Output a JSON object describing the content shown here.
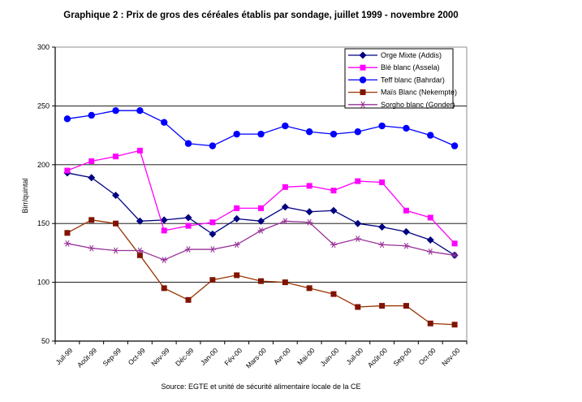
{
  "title": "Graphique 2 : Prix de gros des céréales établis par sondage, juillet 1999 - novembre 2000",
  "source": "Source: EGTE et unité de sécurité alimentaire locale de la CE",
  "chart_data": {
    "type": "line",
    "title": "Graphique 2 : Prix de gros des céréales établis par sondage, juillet 1999 - novembre 2000",
    "xlabel": "",
    "ylabel": "Birr/quintal",
    "ylim": [
      50,
      300
    ],
    "ytick_interval": 50,
    "yticks": [
      50,
      100,
      150,
      200,
      250,
      300
    ],
    "grid": "horizontal",
    "legend_position": "top-right-inside",
    "categories": [
      "Juil-99",
      "Août-99",
      "Sep-99",
      "Oct-99",
      "Nov-99",
      "Déc-99",
      "Jan-00",
      "Fév-00",
      "Mars-00",
      "Avr-00",
      "Mai-00",
      "Juin-00",
      "Juil-00",
      "Août-00",
      "Sep-00",
      "Oct-00",
      "Nov-00"
    ],
    "series": [
      {
        "name": "Orge Mixte (Addis)",
        "marker": "diamond",
        "color": "#000080",
        "marker_color": "#000080",
        "values": [
          193,
          189,
          174,
          152,
          153,
          155,
          141,
          154,
          152,
          164,
          160,
          161,
          150,
          147,
          143,
          136,
          123
        ]
      },
      {
        "name": "Blé blanc (Assela)",
        "marker": "square",
        "color": "#FF00FF",
        "marker_color": "#FF00FF",
        "values": [
          195,
          203,
          207,
          212,
          144,
          148,
          151,
          163,
          163,
          181,
          182,
          178,
          186,
          185,
          161,
          155,
          133
        ]
      },
      {
        "name": "Teff blanc (Bahrdar)",
        "marker": "circle",
        "color": "#0000FF",
        "marker_color": "#0000FF",
        "values": [
          239,
          242,
          246,
          246,
          236,
          218,
          216,
          226,
          226,
          233,
          228,
          226,
          228,
          233,
          231,
          225,
          216
        ]
      },
      {
        "name": "Maïs Blanc (Nekempte)",
        "marker": "square",
        "color": "#993300",
        "marker_color": "#801400",
        "values": [
          142,
          153,
          150,
          123,
          95,
          85,
          102,
          106,
          101,
          100,
          95,
          90,
          79,
          80,
          80,
          65,
          64
        ]
      },
      {
        "name": "Sorgho blanc (Gonder)",
        "marker": "asterisk",
        "color": "#993399",
        "marker_color": "#993399",
        "values": [
          133,
          129,
          127,
          127,
          119,
          128,
          128,
          132,
          144,
          152,
          151,
          132,
          137,
          132,
          131,
          126,
          123
        ]
      }
    ],
    "colors": {
      "axis": "#000000",
      "gridline": "#000000",
      "plot_border": "#8c8c8c",
      "legend_border": "#000000",
      "background": "#ffffff"
    }
  }
}
